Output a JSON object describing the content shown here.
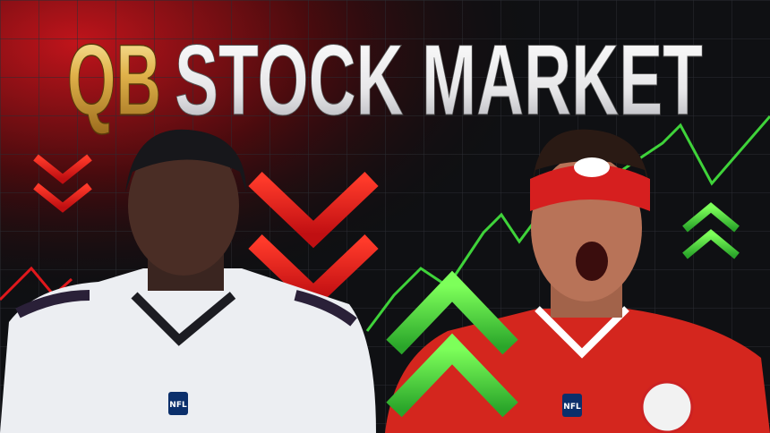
{
  "title": {
    "prefix": "QB",
    "main": "STOCK MARKET"
  },
  "badges": {
    "left": "NFL",
    "right": "NFL"
  }
}
